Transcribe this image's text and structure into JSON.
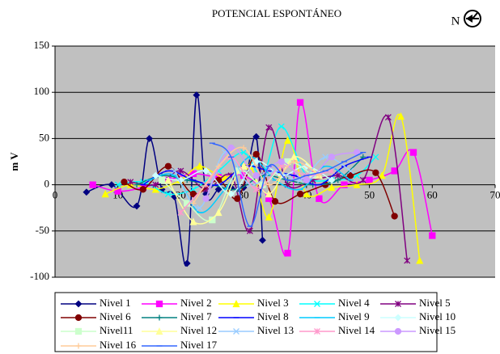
{
  "chart_data": {
    "type": "line",
    "title": "POTENCIAL ESPONTÁNEO",
    "annotation": "N",
    "y_label": "m V",
    "xlim": [
      0,
      70
    ],
    "xticks": [
      0,
      10,
      20,
      30,
      40,
      50,
      60,
      70
    ],
    "ylim": [
      -100,
      150
    ],
    "yticks": [
      -100,
      -50,
      0,
      50,
      100,
      150
    ],
    "grid": true,
    "smooth": true,
    "legend": "bottom",
    "series": [
      {
        "name": "Nivel 1",
        "color": "#000080",
        "marker": "diamond",
        "x": [
          5,
          9,
          13,
          15,
          17,
          19,
          21,
          22.5,
          24,
          26,
          28,
          30,
          32,
          33
        ],
        "values": [
          -8,
          0,
          -23,
          50,
          -5,
          -13,
          -85,
          97,
          -10,
          -5,
          -3,
          -3,
          52,
          -60
        ]
      },
      {
        "name": "Nivel 2",
        "color": "#FF00FF",
        "marker": "square",
        "x": [
          6,
          10,
          14,
          18,
          22,
          26,
          30,
          34,
          37,
          39,
          42,
          46,
          50,
          54,
          57,
          60
        ],
        "values": [
          0,
          -7,
          -3,
          5,
          12,
          8,
          10,
          -15,
          -74,
          89,
          -15,
          0,
          5,
          15,
          35,
          -55
        ]
      },
      {
        "name": "Nivel 3",
        "color": "#FFFF00",
        "marker": "triangle",
        "x": [
          8,
          12,
          16,
          20,
          23,
          27,
          31,
          34,
          37,
          40,
          44,
          48,
          52,
          55,
          58
        ],
        "values": [
          -10,
          0,
          -5,
          5,
          20,
          8,
          20,
          -35,
          48,
          -10,
          -3,
          0,
          10,
          74,
          -82
        ]
      },
      {
        "name": "Nivel 4",
        "color": "#00FFFF",
        "marker": "x",
        "x": [
          10,
          14,
          18,
          22,
          26,
          30,
          33,
          36,
          40,
          44,
          48,
          51
        ],
        "values": [
          0,
          3,
          -10,
          -5,
          15,
          35,
          10,
          63,
          10,
          5,
          10,
          30
        ]
      },
      {
        "name": "Nivel 5",
        "color": "#800080",
        "marker": "star",
        "x": [
          12,
          16,
          20,
          24,
          28,
          31,
          34,
          37,
          41,
          45,
          49,
          53,
          56
        ],
        "values": [
          3,
          0,
          15,
          -5,
          10,
          -50,
          62,
          0,
          5,
          10,
          5,
          73,
          -82
        ]
      },
      {
        "name": "Nivel 6",
        "color": "#800000",
        "marker": "circle",
        "x": [
          11,
          14,
          18,
          22,
          26,
          29,
          32,
          35,
          39,
          43,
          47,
          51,
          54
        ],
        "values": [
          3,
          -5,
          20,
          -10,
          5,
          -15,
          33,
          -18,
          -10,
          0,
          10,
          13,
          -34
        ]
      },
      {
        "name": "Nivel 7",
        "color": "#008080",
        "marker": "plus",
        "x": [
          13,
          17,
          21,
          25,
          29,
          33,
          37,
          41,
          45,
          49
        ],
        "values": [
          0,
          10,
          5,
          0,
          -5,
          10,
          5,
          0,
          5,
          30
        ]
      },
      {
        "name": "Nivel 8",
        "color": "#0000FF",
        "marker": "dash",
        "x": [
          14,
          18,
          22,
          26,
          30,
          34,
          38,
          42,
          46,
          50
        ],
        "values": [
          0,
          15,
          5,
          0,
          20,
          15,
          10,
          0,
          20,
          30
        ]
      },
      {
        "name": "Nivel 9",
        "color": "#00CCFF",
        "marker": "dash",
        "x": [
          15,
          19,
          23,
          27,
          31,
          35,
          39,
          43,
          47
        ],
        "values": [
          5,
          10,
          -30,
          -5,
          30,
          5,
          -5,
          20,
          5
        ]
      },
      {
        "name": "Nivel 10",
        "color": "#CCFFFF",
        "marker": "diamond",
        "x": [
          16,
          20,
          24,
          28,
          32,
          36,
          40,
          44
        ],
        "values": [
          10,
          5,
          15,
          -10,
          25,
          10,
          20,
          5
        ]
      },
      {
        "name": "Nivel11",
        "color": "#CCFFCC",
        "marker": "square",
        "x": [
          17,
          21,
          25,
          29,
          33,
          37,
          41
        ],
        "values": [
          5,
          -20,
          -38,
          15,
          0,
          25,
          10
        ]
      },
      {
        "name": "Nivel 12",
        "color": "#FFFF99",
        "marker": "triangle",
        "x": [
          18,
          22,
          26,
          30,
          34,
          38,
          42
        ],
        "values": [
          5,
          -40,
          -30,
          20,
          -10,
          30,
          10
        ]
      },
      {
        "name": "Nivel 13",
        "color": "#99CCFF",
        "marker": "x",
        "x": [
          19,
          23,
          27,
          31,
          35,
          39,
          43,
          47
        ],
        "values": [
          15,
          -25,
          35,
          0,
          15,
          5,
          30,
          15
        ]
      },
      {
        "name": "Nivel 14",
        "color": "#FF99CC",
        "marker": "star",
        "x": [
          20,
          24,
          28,
          32,
          36,
          40,
          44
        ],
        "values": [
          -30,
          0,
          30,
          -5,
          20,
          10,
          15
        ]
      },
      {
        "name": "Nivel 15",
        "color": "#CC99FF",
        "marker": "circle",
        "x": [
          24,
          28,
          32,
          36,
          40,
          44,
          48
        ],
        "values": [
          -15,
          40,
          10,
          25,
          5,
          30,
          35
        ]
      },
      {
        "name": "Nivel 16",
        "color": "#FFCC99",
        "marker": "plus",
        "x": [
          22,
          26,
          30,
          34,
          38,
          42
        ],
        "values": [
          -20,
          20,
          40,
          0,
          25,
          10
        ]
      },
      {
        "name": "Nivel 17",
        "color": "#3366FF",
        "marker": "dash",
        "x": [
          25,
          28,
          31,
          34,
          37,
          40,
          43,
          46,
          49
        ],
        "values": [
          45,
          30,
          -45,
          20,
          5,
          10,
          15,
          25,
          35
        ]
      }
    ]
  }
}
